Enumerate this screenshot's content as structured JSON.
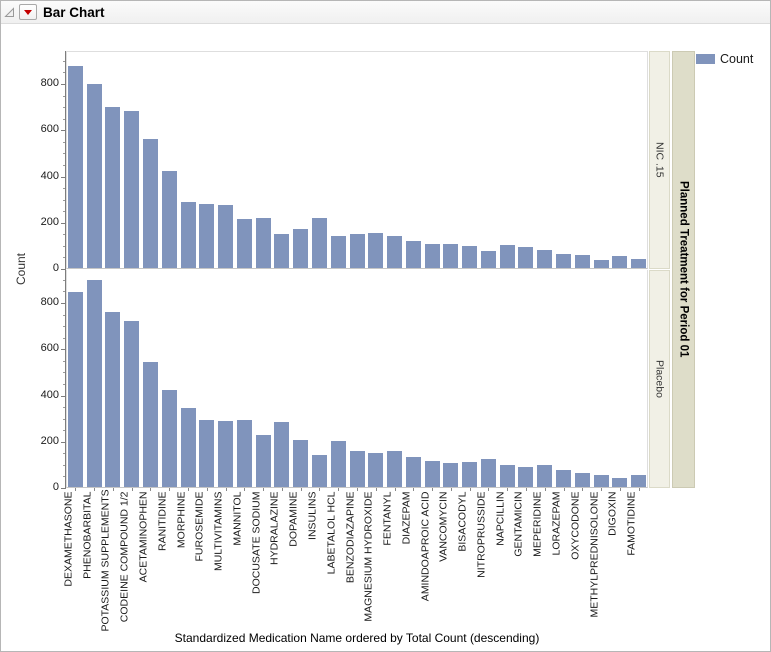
{
  "window": {
    "title": "Bar Chart"
  },
  "legend": {
    "label": "Count"
  },
  "colors": {
    "bar": "#8094BC",
    "strip_inner": "#F1F0E6",
    "strip_outer": "#DEDDC9",
    "menu_triangle": "#C40000",
    "axis_line": "#7D7D7D"
  },
  "icons": {
    "disclosure": "disclosure-triangle-icon",
    "menu": "red-triangle-menu-icon"
  },
  "chart_data": {
    "type": "bar",
    "title": "Bar Chart",
    "xlabel": "Standardized Medication Name ordered by Total Count (descending)",
    "ylabel": "Count",
    "panel_variable": "Planned Treatment for Period 01",
    "legend_entries": [
      "Count"
    ],
    "legend_position": "right",
    "grid": false,
    "ylim": [
      0,
      940
    ],
    "yticks": [
      0,
      200,
      400,
      600,
      800
    ],
    "minor_tick_interval": 50,
    "categories": [
      "DEXAMETHASONE",
      "PHENOBARBITAL",
      "POTASSIUM SUPPLEMENTS",
      "CODEINE COMPOUND 1/2",
      "ACETAMINOPHEN",
      "RANITIDINE",
      "MORPHINE",
      "FUROSEMIDE",
      "MULTIVITAMINS",
      "MANNITOL",
      "DOCUSATE SODIUM",
      "HYDRALAZINE",
      "DOPAMINE",
      "INSULINS",
      "LABETALOL HCL",
      "BENZODIAZAPINE",
      "MAGNESIUM HYDROXIDE",
      "FENTANYL",
      "DIAZEPAM",
      "AMINDOAPROIC ACID",
      "VANCOMYCIN",
      "BISACODYL",
      "NITROPRUSSIDE",
      "NAPCILLIN",
      "GENTAMICIN",
      "MEPERIDINE",
      "LORAZEPAM",
      "OXYCODONE",
      "METHYLPREDNISOLONE",
      "DIGOXIN",
      "FAMOTIDINE"
    ],
    "series": [
      {
        "name": "NIC .15",
        "values": [
          875,
          795,
          695,
          680,
          560,
          420,
          285,
          278,
          272,
          210,
          218,
          145,
          168,
          215,
          138,
          148,
          152,
          138,
          116,
          105,
          104,
          97,
          75,
          100,
          90,
          80,
          62,
          55,
          36,
          51,
          40
        ]
      },
      {
        "name": "Placebo",
        "values": [
          845,
          895,
          755,
          720,
          540,
          420,
          340,
          290,
          285,
          290,
          225,
          280,
          205,
          140,
          198,
          155,
          148,
          155,
          131,
          111,
          103,
          110,
          123,
          93,
          86,
          96,
          74,
          60,
          54,
          40,
          50
        ]
      }
    ]
  }
}
